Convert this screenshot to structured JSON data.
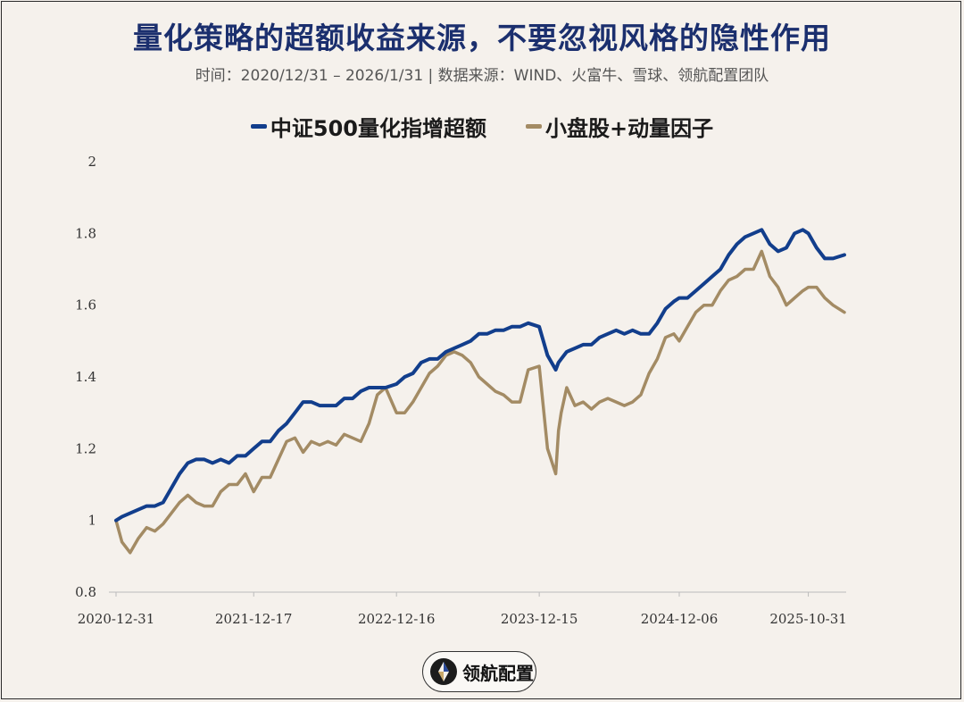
{
  "title": "量化策略的超额收益来源，不要忽视风格的隐性作用",
  "subtitle": "时间：2020/12/31 – 2026/1/31 | 数据来源：WIND、火富牛、雪球、领航配置团队",
  "logo_text": "领航配置",
  "colors": {
    "series1": "#123e8c",
    "series2": "#a38b64",
    "title": "#1b2f6e",
    "background": "#f5f1ec"
  },
  "chart_data": {
    "type": "line",
    "title": "量化策略的超额收益来源，不要忽视风格的隐性作用",
    "xlabel": "",
    "ylabel": "",
    "ylim": [
      0.8,
      2
    ],
    "yticks": [
      "0.8",
      "1",
      "1.2",
      "1.4",
      "1.6",
      "1.8",
      "2"
    ],
    "xticks": [
      "2020-12-31",
      "2021-12-17",
      "2022-12-16",
      "2023-12-15",
      "2024-12-06",
      "2025-10-31"
    ],
    "grid": false,
    "legend_position": "top-center",
    "x": [
      "2020-12-31",
      "2021-01-15",
      "2021-02-05",
      "2021-02-26",
      "2021-03-19",
      "2021-04-09",
      "2021-04-30",
      "2021-05-21",
      "2021-06-11",
      "2021-07-02",
      "2021-07-23",
      "2021-08-13",
      "2021-09-03",
      "2021-09-24",
      "2021-10-15",
      "2021-11-05",
      "2021-11-26",
      "2021-12-17",
      "2022-01-07",
      "2022-01-28",
      "2022-02-18",
      "2022-03-11",
      "2022-04-01",
      "2022-04-22",
      "2022-05-13",
      "2022-06-03",
      "2022-06-24",
      "2022-07-15",
      "2022-08-05",
      "2022-08-26",
      "2022-09-16",
      "2022-10-07",
      "2022-10-28",
      "2022-11-18",
      "2022-12-16",
      "2023-01-06",
      "2023-01-27",
      "2023-02-17",
      "2023-03-10",
      "2023-03-31",
      "2023-04-21",
      "2023-05-12",
      "2023-06-02",
      "2023-06-23",
      "2023-07-14",
      "2023-08-04",
      "2023-08-25",
      "2023-09-15",
      "2023-10-06",
      "2023-10-27",
      "2023-11-17",
      "2023-12-15",
      "2024-01-05",
      "2024-01-26",
      "2024-02-02",
      "2024-02-09",
      "2024-02-23",
      "2024-03-15",
      "2024-04-05",
      "2024-04-26",
      "2024-05-17",
      "2024-06-07",
      "2024-06-28",
      "2024-07-19",
      "2024-08-09",
      "2024-08-30",
      "2024-09-20",
      "2024-10-11",
      "2024-11-01",
      "2024-11-22",
      "2024-12-06",
      "2024-12-27",
      "2025-01-17",
      "2025-02-07",
      "2025-02-28",
      "2025-03-21",
      "2025-04-11",
      "2025-05-02",
      "2025-05-23",
      "2025-06-13",
      "2025-07-04",
      "2025-07-25",
      "2025-08-15",
      "2025-09-05",
      "2025-09-26",
      "2025-10-17",
      "2025-10-31",
      "2025-11-21",
      "2025-12-12",
      "2026-01-02",
      "2026-01-31"
    ],
    "series": [
      {
        "name": "中证500量化指增超额",
        "color": "#123e8c",
        "values": [
          1.0,
          1.01,
          1.02,
          1.03,
          1.04,
          1.04,
          1.05,
          1.09,
          1.13,
          1.16,
          1.17,
          1.17,
          1.16,
          1.17,
          1.16,
          1.18,
          1.18,
          1.2,
          1.22,
          1.22,
          1.25,
          1.27,
          1.3,
          1.33,
          1.33,
          1.32,
          1.32,
          1.32,
          1.34,
          1.34,
          1.36,
          1.37,
          1.37,
          1.37,
          1.38,
          1.4,
          1.41,
          1.44,
          1.45,
          1.45,
          1.47,
          1.48,
          1.49,
          1.5,
          1.52,
          1.52,
          1.53,
          1.53,
          1.54,
          1.54,
          1.55,
          1.54,
          1.46,
          1.42,
          1.44,
          1.45,
          1.47,
          1.48,
          1.49,
          1.49,
          1.51,
          1.52,
          1.53,
          1.52,
          1.53,
          1.52,
          1.52,
          1.55,
          1.59,
          1.61,
          1.62,
          1.62,
          1.64,
          1.66,
          1.68,
          1.7,
          1.74,
          1.77,
          1.79,
          1.8,
          1.81,
          1.77,
          1.75,
          1.76,
          1.8,
          1.81,
          1.8,
          1.76,
          1.73,
          1.73,
          1.74
        ]
      },
      {
        "name": "小盘股+动量因子",
        "color": "#a38b64",
        "values": [
          1.0,
          0.94,
          0.91,
          0.95,
          0.98,
          0.97,
          0.99,
          1.02,
          1.05,
          1.07,
          1.05,
          1.04,
          1.04,
          1.08,
          1.1,
          1.1,
          1.13,
          1.08,
          1.12,
          1.12,
          1.17,
          1.22,
          1.23,
          1.19,
          1.22,
          1.21,
          1.22,
          1.21,
          1.24,
          1.23,
          1.22,
          1.27,
          1.35,
          1.37,
          1.3,
          1.3,
          1.33,
          1.37,
          1.41,
          1.43,
          1.46,
          1.47,
          1.46,
          1.44,
          1.4,
          1.38,
          1.36,
          1.35,
          1.33,
          1.33,
          1.42,
          1.43,
          1.2,
          1.13,
          1.25,
          1.3,
          1.37,
          1.32,
          1.33,
          1.31,
          1.33,
          1.34,
          1.33,
          1.32,
          1.33,
          1.35,
          1.41,
          1.45,
          1.51,
          1.52,
          1.5,
          1.54,
          1.58,
          1.6,
          1.6,
          1.64,
          1.67,
          1.68,
          1.7,
          1.7,
          1.75,
          1.68,
          1.65,
          1.6,
          1.62,
          1.64,
          1.65,
          1.65,
          1.62,
          1.6,
          1.58
        ]
      }
    ]
  }
}
